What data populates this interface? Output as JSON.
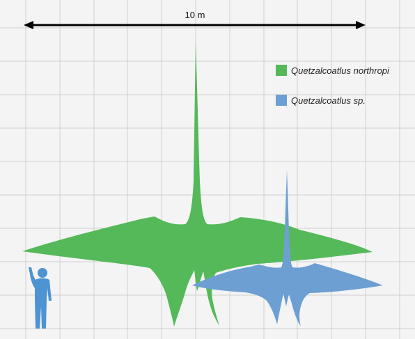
{
  "scale_bar": {
    "label": "10 m"
  },
  "legend": [
    {
      "label": "Quetzalcoatlus northropi",
      "color": "#55b95a"
    },
    {
      "label": "Quetzalcoatlus sp.",
      "color": "#6d9fd2"
    }
  ],
  "figures": [
    {
      "name": "human",
      "color": "#4e93d2",
      "icon": "human-silhouette"
    },
    {
      "name": "quetzalcoatlus-northropi",
      "color": "#55b95a"
    },
    {
      "name": "quetzalcoatlus-sp",
      "color": "#6d9fd2"
    }
  ],
  "background": {
    "color": "#f4f4f4",
    "grid_color": "#cfcfcf"
  }
}
